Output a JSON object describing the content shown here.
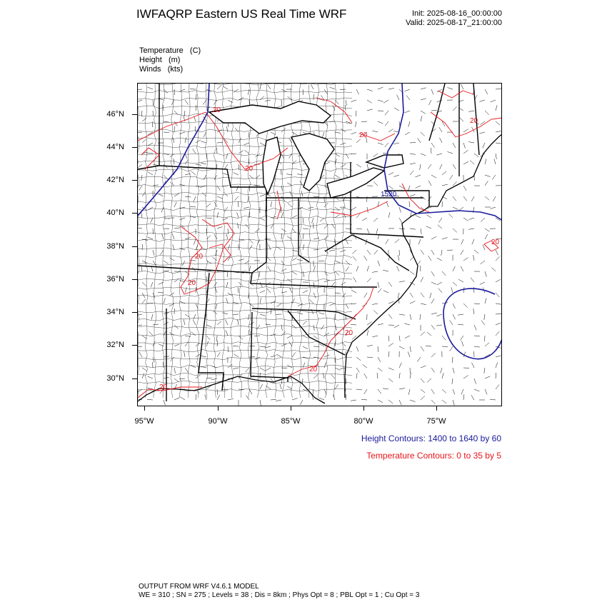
{
  "title": "IWFAQRP Eastern US Real Time WRF",
  "init": "Init: 2025-08-16_00:00:00",
  "valid": "Valid: 2025-08-17_21:00:00",
  "variables": [
    "Temperature   (C)",
    "Height   (m)",
    "Winds   (kts)"
  ],
  "map": {
    "lat_labels": [
      "46°N",
      "44°N",
      "42°N",
      "40°N",
      "38°N",
      "36°N",
      "34°N",
      "32°N",
      "30°N"
    ],
    "lon_labels": [
      "95°W",
      "90°W",
      "85°W",
      "80°W",
      "75°W"
    ],
    "height_contour_label": "1520",
    "temperature_contour_labels": [
      "20",
      "20",
      "20",
      "20",
      "20",
      "20",
      "20",
      "20",
      "20",
      "20"
    ],
    "height_color": "#1a1a9c",
    "temperature_color": "#e8141b"
  },
  "legend": {
    "height": "Height Contours: 1400 to 1640 by 60",
    "temperature": "Temperature Contours: 0 to 35 by 5"
  },
  "footer": {
    "line1": "OUTPUT FROM WRF V4.6.1 MODEL",
    "line2": "WE = 310 ; SN = 275 ; Levels = 38 ; Dis = 8km ; Phys Opt = 8 ; PBL Opt = 1 ; Cu Opt = 3"
  }
}
